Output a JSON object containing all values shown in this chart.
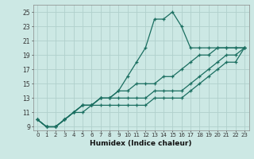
{
  "xlabel": "Humidex (Indice chaleur)",
  "ylabel": "",
  "background_color": "#cce8e4",
  "grid_color": "#b0d0cc",
  "line_color": "#1a6e60",
  "xlim": [
    -0.5,
    23.5
  ],
  "ylim": [
    8.5,
    26
  ],
  "xticks": [
    0,
    1,
    2,
    3,
    4,
    5,
    6,
    7,
    8,
    9,
    10,
    11,
    12,
    13,
    14,
    15,
    16,
    17,
    18,
    19,
    20,
    21,
    22,
    23
  ],
  "yticks": [
    9,
    11,
    13,
    15,
    17,
    19,
    21,
    23,
    25
  ],
  "series": [
    [
      10,
      9,
      9,
      10,
      11,
      12,
      12,
      13,
      13,
      14,
      16,
      18,
      20,
      24,
      24,
      25,
      23,
      20,
      20,
      20,
      20,
      20,
      20,
      20
    ],
    [
      10,
      9,
      9,
      10,
      11,
      12,
      12,
      13,
      13,
      14,
      14,
      15,
      15,
      15,
      16,
      16,
      17,
      18,
      19,
      19,
      20,
      20,
      20,
      20
    ],
    [
      10,
      9,
      9,
      10,
      11,
      12,
      12,
      13,
      13,
      13,
      13,
      13,
      13,
      14,
      14,
      14,
      14,
      15,
      16,
      17,
      18,
      19,
      19,
      20
    ],
    [
      10,
      9,
      9,
      10,
      11,
      11,
      12,
      12,
      12,
      12,
      12,
      12,
      12,
      13,
      13,
      13,
      13,
      14,
      15,
      16,
      17,
      18,
      18,
      20
    ]
  ]
}
